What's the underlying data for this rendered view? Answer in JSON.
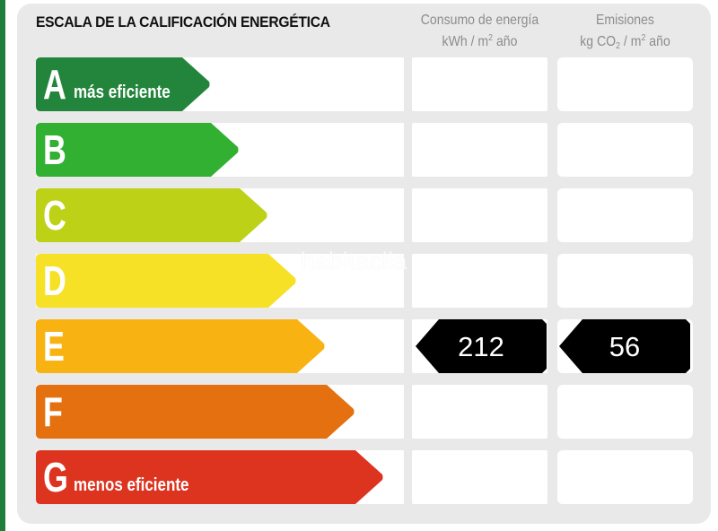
{
  "title": "ESCALA DE LA CALIFICACIÓN ENERGÉTICA",
  "columns": {
    "consumption": {
      "line1": "Consumo de energía",
      "line2_pre": "kWh / m",
      "line2_sup": "2",
      "line2_post": " año"
    },
    "emissions": {
      "line1": "Emisiones",
      "line2_pre": "kg CO",
      "line2_sub": "2",
      "line2_mid": " / m",
      "line2_sup": "2",
      "line2_post": " año"
    }
  },
  "watermark": "habitaclia",
  "ratings": [
    {
      "letter": "A",
      "label": "más eficiente",
      "color": "#23853c",
      "tip_x": 234
    },
    {
      "letter": "B",
      "label": "",
      "color": "#31b032",
      "tip_x": 266
    },
    {
      "letter": "C",
      "label": "",
      "color": "#bdd116",
      "tip_x": 298
    },
    {
      "letter": "D",
      "label": "",
      "color": "#f7e126",
      "tip_x": 330
    },
    {
      "letter": "E",
      "label": "",
      "color": "#f8b312",
      "tip_x": 362
    },
    {
      "letter": "F",
      "label": "",
      "color": "#e5700f",
      "tip_x": 395
    },
    {
      "letter": "G",
      "label": "menos eficiente",
      "color": "#dd3420",
      "tip_x": 427
    }
  ],
  "result": {
    "rating": "E",
    "consumption": "212",
    "emissions": "56"
  },
  "chart_data": {
    "type": "table",
    "title": "ESCALA DE LA CALIFICACIÓN ENERGÉTICA",
    "categories": [
      "A",
      "B",
      "C",
      "D",
      "E",
      "F",
      "G"
    ],
    "category_labels": {
      "A": "más eficiente",
      "G": "menos eficiente"
    },
    "columns": [
      "Consumo de energía (kWh / m² año)",
      "Emisiones (kg CO₂ / m² año)"
    ],
    "series": [
      {
        "name": "Consumo de energía kWh / m² año",
        "values": [
          null,
          null,
          null,
          null,
          212,
          null,
          null
        ]
      },
      {
        "name": "Emisiones kg CO₂ / m² año",
        "values": [
          null,
          null,
          null,
          null,
          56,
          null,
          null
        ]
      }
    ],
    "selected_rating": "E"
  }
}
